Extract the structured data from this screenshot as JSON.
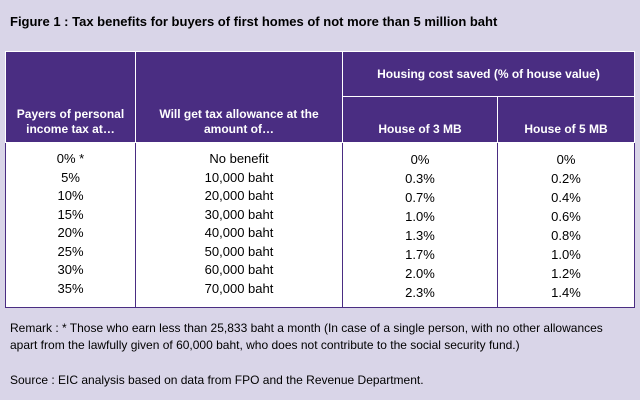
{
  "title": "Figure 1 : Tax benefits for buyers of first homes of not more than 5 million baht",
  "table": {
    "headers": {
      "payers": "Payers of personal income tax at…",
      "allowance": "Will get tax allowance at the amount of…",
      "group": "Housing cost saved (% of house value)",
      "house3": "House of 3 MB",
      "house5": "House of 5 MB"
    },
    "columns": {
      "payers": [
        "0% *",
        "5%",
        "10%",
        "15%",
        "20%",
        "25%",
        "30%",
        "35%"
      ],
      "allowance": [
        "No benefit",
        "10,000 baht",
        "20,000 baht",
        "30,000 baht",
        "40,000 baht",
        "50,000 baht",
        "60,000 baht",
        "70,000 baht"
      ],
      "house3": [
        "0%",
        "0.3%",
        "0.7%",
        "1.0%",
        "1.3%",
        "1.7%",
        "2.0%",
        "2.3%"
      ],
      "house5": [
        "0%",
        "0.2%",
        "0.4%",
        "0.6%",
        "0.8%",
        "1.0%",
        "1.2%",
        "1.4%"
      ]
    }
  },
  "remark": "Remark : * Those who earn less than 25,833 baht a month (In case of a single person, with no other allowances apart from the lawfully given of 60,000 baht, who does not contribute to the social security fund.)",
  "source": "Source : EIC analysis based on data from FPO and the Revenue Department."
}
